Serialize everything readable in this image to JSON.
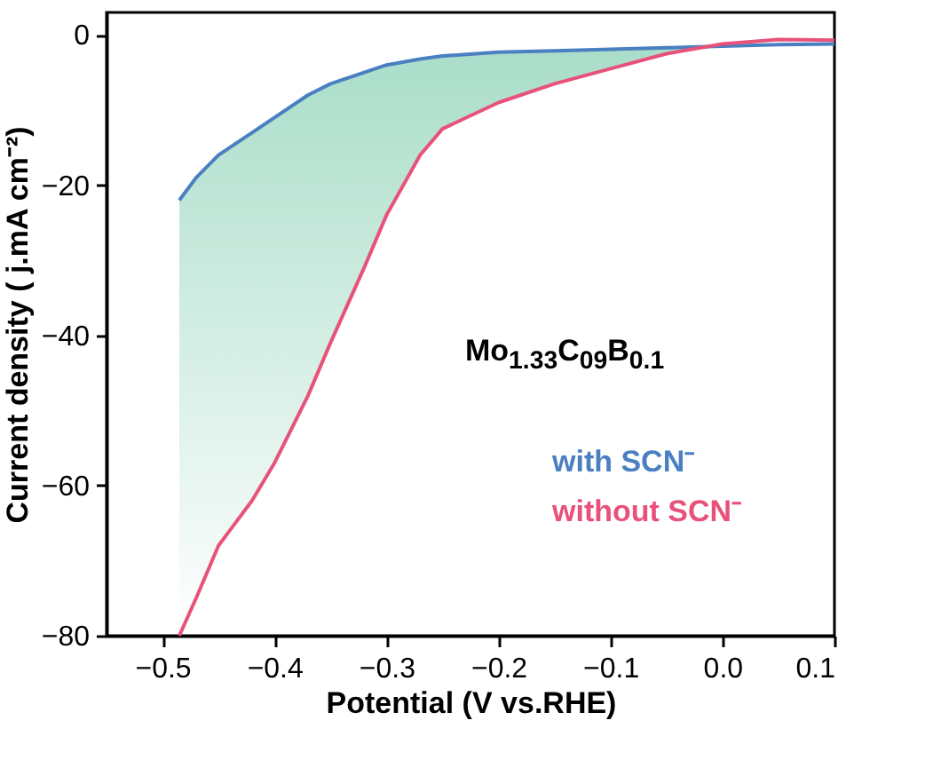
{
  "chart_data": {
    "type": "line",
    "xlabel": "Potential (V vs.RHE)",
    "ylabel": "Current density ( j.mA cm⁻²)",
    "annotations": [
      "Mo$_{1.33}$C$_{09}$B$_{0.1}$"
    ],
    "x": [
      -0.485,
      -0.47,
      -0.45,
      -0.42,
      -0.4,
      -0.37,
      -0.35,
      -0.32,
      -0.3,
      -0.27,
      -0.25,
      -0.2,
      -0.15,
      -0.1,
      -0.05,
      0,
      0.05,
      0.1
    ],
    "series": [
      {
        "name": "with SCN⁻",
        "color": "#4a7fc1",
        "values": [
          -22,
          -19,
          -16,
          -13,
          -11,
          -8,
          -6.5,
          -5,
          -4,
          -3.2,
          -2.8,
          -2.3,
          -2.1,
          -1.9,
          -1.7,
          -1.5,
          -1.3,
          -1.2
        ],
        "upper": [
          -22,
          -19,
          -16,
          -13,
          -11,
          -8,
          -6.5,
          -5,
          -4,
          -3.2,
          -2.8,
          -2.3,
          -2.1,
          -1.9,
          -1.7,
          -1.5,
          -1.3,
          -1.2
        ],
        "lower": [
          -80,
          -75,
          -68,
          -62,
          -57,
          -48,
          -41,
          -31,
          -24,
          -16,
          -12.5,
          -9,
          -6.5,
          -4.5,
          -2.5,
          -1.5,
          -1.3,
          -1.2
        ]
      },
      {
        "name": "without SCN⁻",
        "color": "#e8527a",
        "values": [
          -80,
          -75,
          -68,
          -62,
          -57,
          -48,
          -41,
          -31,
          -24,
          -16,
          -12.5,
          -9,
          -6.5,
          -4.5,
          -2.5,
          -1.2,
          -0.6,
          -0.7
        ]
      }
    ],
    "xlim": [
      -0.55,
      0.1
    ],
    "ylim": [
      -80,
      3
    ],
    "xticks": [
      -0.5,
      -0.4,
      -0.3,
      -0.2,
      -0.1,
      {
        "value": 0,
        "label": "0.0"
      },
      0.1
    ],
    "yticks": [
      -80,
      -60,
      -40,
      -20,
      0
    ],
    "grid": false,
    "legend": "bottom right",
    "marker": "none",
    "line_style": "solid"
  }
}
